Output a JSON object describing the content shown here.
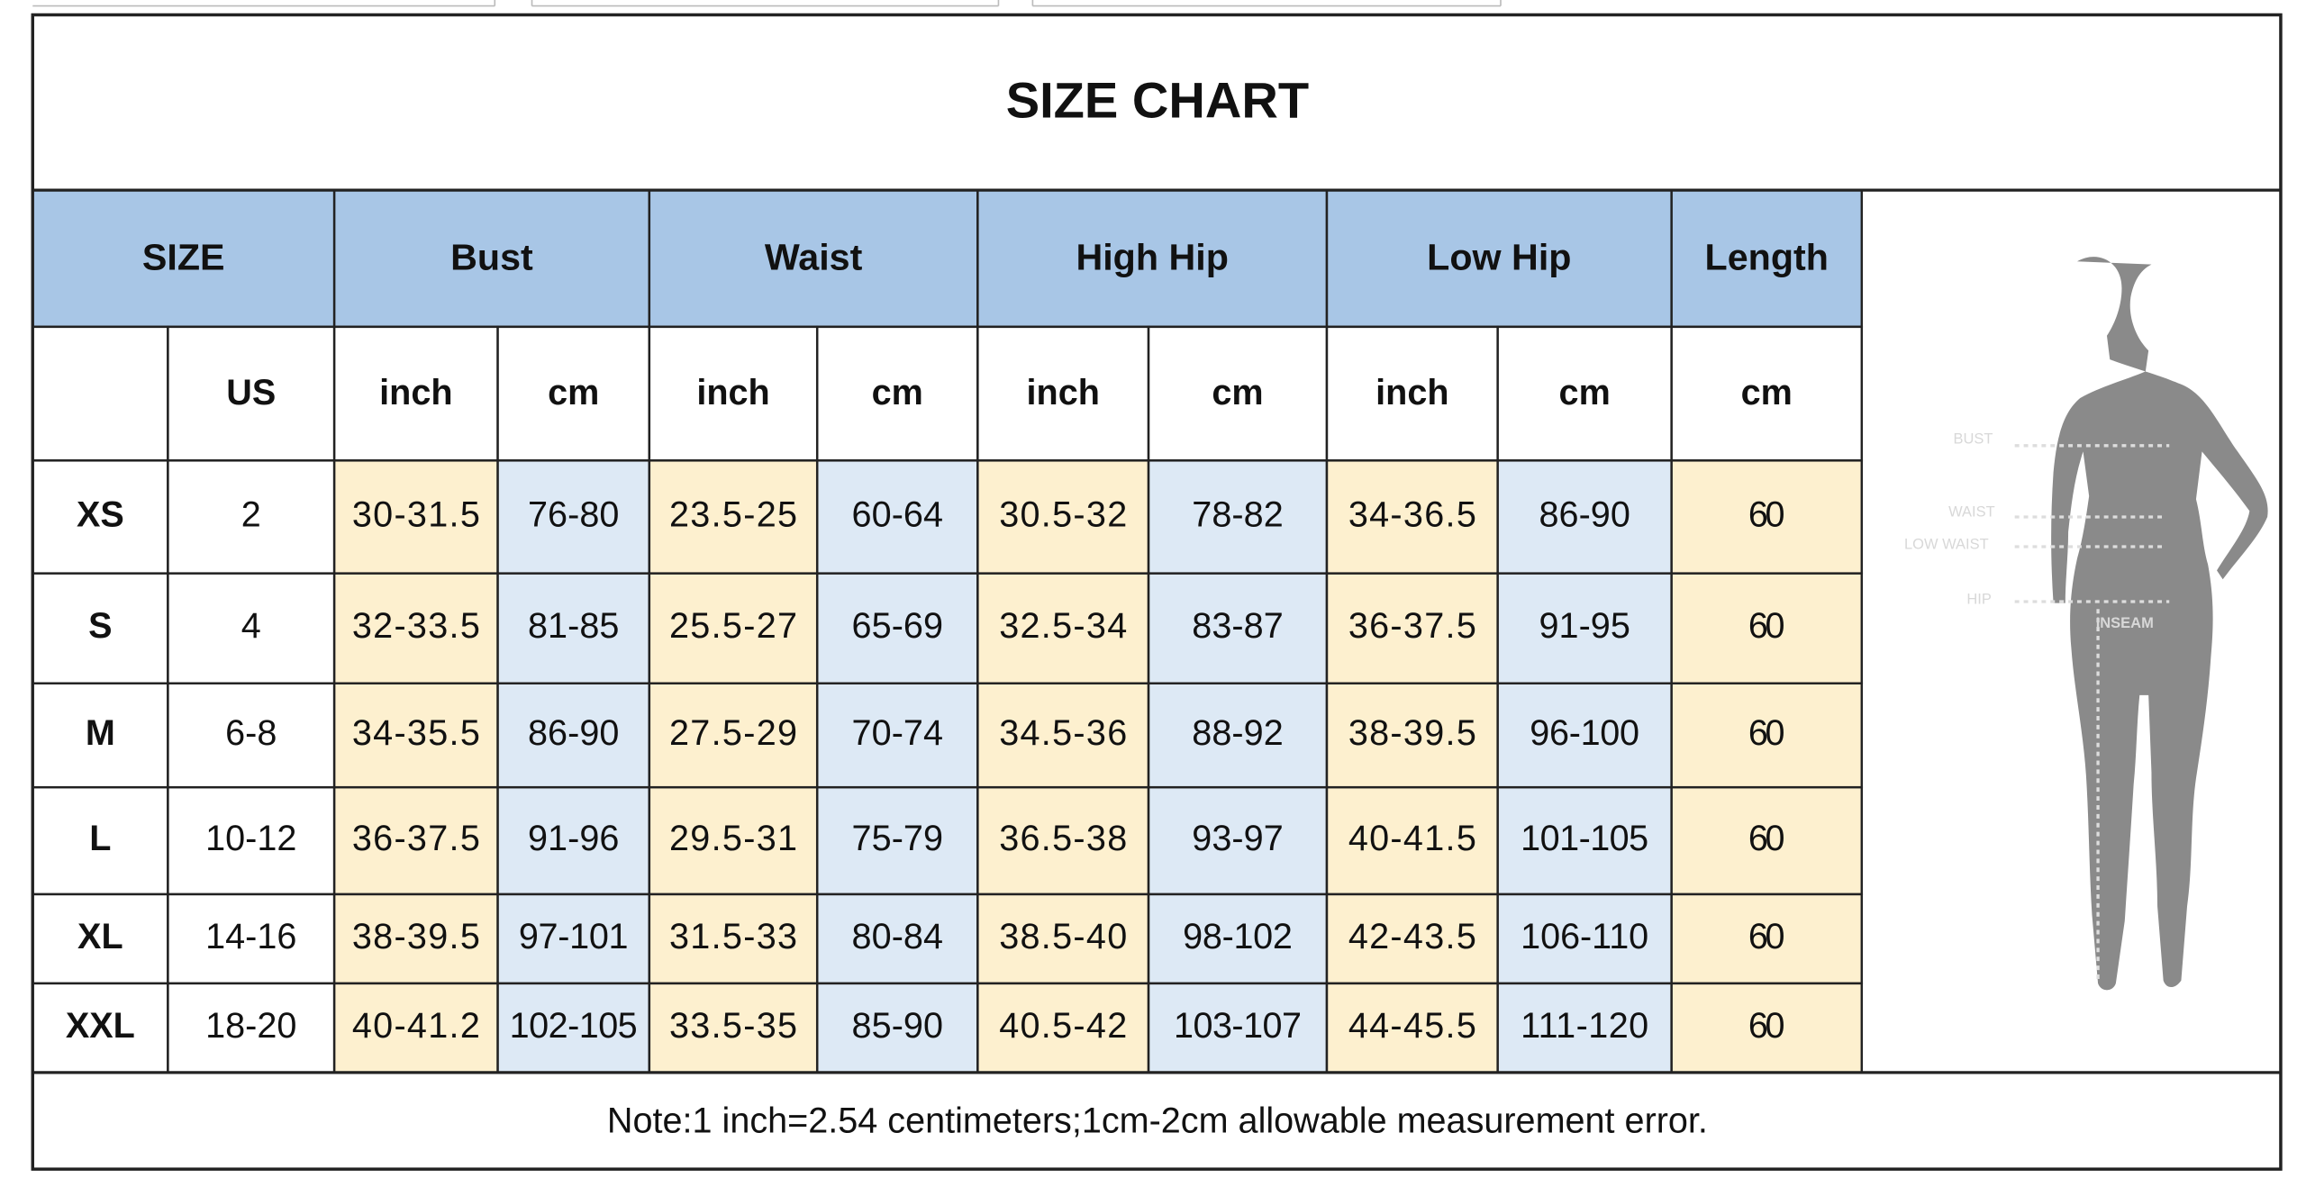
{
  "title": "SIZE CHART",
  "table": {
    "groups": [
      "SIZE",
      "Bust",
      "Waist",
      "High Hip",
      "Low Hip",
      "Length"
    ],
    "units": [
      "US",
      "inch",
      "cm",
      "inch",
      "cm",
      "inch",
      "cm",
      "inch",
      "cm",
      "cm"
    ],
    "rows": [
      [
        "XS",
        "2",
        "30-31.5",
        "76-80",
        "23.5-25",
        "60-64",
        "30.5-32",
        "78-82",
        "34-36.5",
        "86-90",
        "60"
      ],
      [
        "S",
        "4",
        "32-33.5",
        "81-85",
        "25.5-27",
        "65-69",
        "32.5-34",
        "83-87",
        "36-37.5",
        "91-95",
        "60"
      ],
      [
        "M",
        "6-8",
        "34-35.5",
        "86-90",
        "27.5-29",
        "70-74",
        "34.5-36",
        "88-92",
        "38-39.5",
        "96-100",
        "60"
      ],
      [
        "L",
        "10-12",
        "36-37.5",
        "91-96",
        "29.5-31",
        "75-79",
        "36.5-38",
        "93-97",
        "40-41.5",
        "101-105",
        "60"
      ],
      [
        "XL",
        "14-16",
        "38-39.5",
        "97-101",
        "31.5-33",
        "80-84",
        "38.5-40",
        "98-102",
        "42-43.5",
        "106-110",
        "60"
      ],
      [
        "XXL",
        "18-20",
        "40-41.2",
        "102-105",
        "33.5-35",
        "85-90",
        "40.5-42",
        "103-107",
        "44-45.5",
        "111-120",
        "60"
      ]
    ]
  },
  "figure": {
    "labels": [
      "BUST",
      "WAIST",
      "LOW WAIST",
      "HIP",
      "INSEAM"
    ]
  },
  "note": "Note:1 inch=2.54 centimeters;1cm-2cm allowable measurement error."
}
